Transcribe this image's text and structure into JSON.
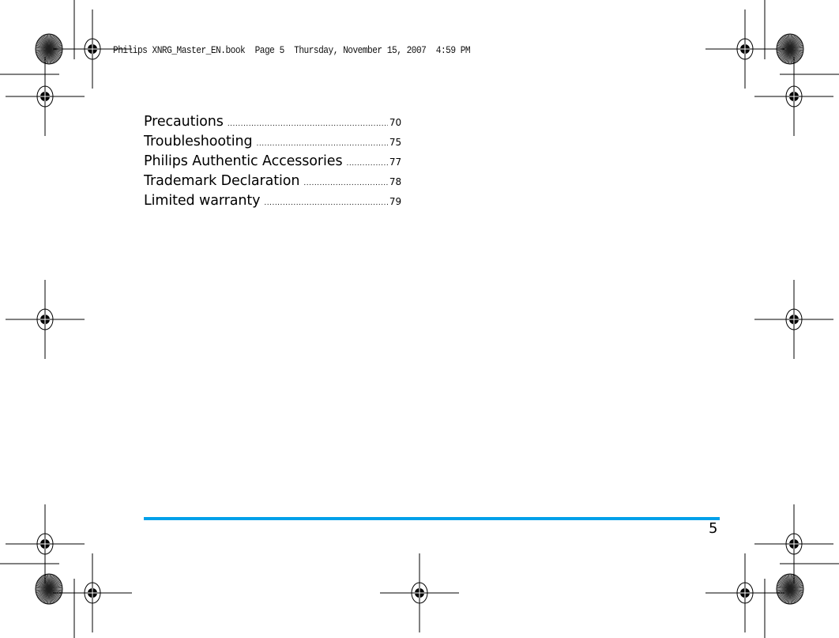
{
  "header": {
    "slug": "Philips XNRG_Master_EN.book  Page 5  Thursday, November 15, 2007  4:59 PM"
  },
  "toc": {
    "entries": [
      {
        "title": "Precautions",
        "page": "70"
      },
      {
        "title": "Troubleshooting",
        "page": "75"
      },
      {
        "title": "Philips Authentic Accessories",
        "page": "77"
      },
      {
        "title": "Trademark Declaration",
        "page": "78"
      },
      {
        "title": "Limited warranty",
        "page": "79"
      }
    ]
  },
  "footer": {
    "page_number": "5",
    "rule_color": "#00a0e9"
  }
}
